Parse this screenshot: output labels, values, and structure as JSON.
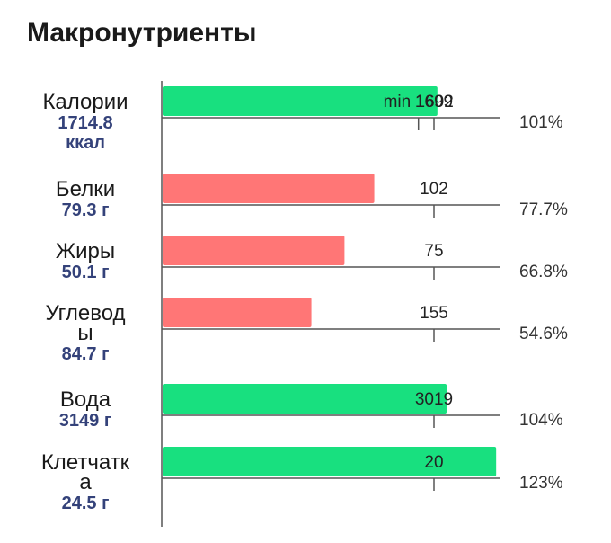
{
  "title": "Макронутриенты",
  "colors": {
    "above_target": "#18e07f",
    "below_target": "#ff7676",
    "axis": "#555555",
    "value_text": "#34427a"
  },
  "chart_data": {
    "type": "bar",
    "orientation": "horizontal",
    "rows": [
      {
        "name_lines": [
          "Калории"
        ],
        "value_lines": [
          "1714.8",
          "ккал"
        ],
        "value": 1714.8,
        "target": 1699,
        "target_label": "1699",
        "min": 1602,
        "min_label": "min 1602",
        "percent": "101%"
      },
      {
        "name_lines": [
          "Белки"
        ],
        "value_lines": [
          "79.3 г"
        ],
        "value": 79.3,
        "target": 102,
        "target_label": "102",
        "percent": "77.7%"
      },
      {
        "name_lines": [
          "Жиры"
        ],
        "value_lines": [
          "50.1 г"
        ],
        "value": 50.1,
        "target": 75,
        "target_label": "75",
        "percent": "66.8%"
      },
      {
        "name_lines": [
          "Углевод",
          "ы"
        ],
        "value_lines": [
          "84.7 г"
        ],
        "value": 84.7,
        "target": 155,
        "target_label": "155",
        "percent": "54.6%"
      },
      {
        "name_lines": [
          "Вода"
        ],
        "value_lines": [
          "3149 г"
        ],
        "value": 3149,
        "target": 3019,
        "target_label": "3019",
        "percent": "104%"
      },
      {
        "name_lines": [
          "Клетчатк",
          "а"
        ],
        "value_lines": [
          "24.5 г"
        ],
        "value": 24.5,
        "target": 20,
        "target_label": "20",
        "percent": "123%"
      }
    ]
  }
}
